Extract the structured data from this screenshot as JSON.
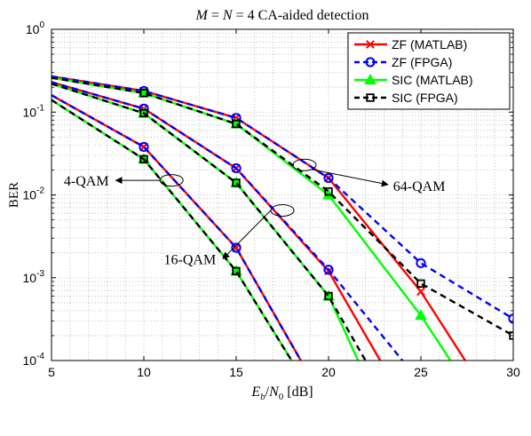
{
  "chart_data": {
    "type": "line",
    "title": "M = N = 4 CA-aided detection",
    "xlabel": "E_b/N_0 [dB]",
    "ylabel": "BER",
    "xlim": [
      5,
      30
    ],
    "ylim": [
      0.0001,
      1
    ],
    "yscale": "log",
    "grid": true,
    "legend_position": "top-right",
    "x_ticks": [
      "5",
      "10",
      "15",
      "20",
      "25",
      "30"
    ],
    "y_ticks": [
      {
        "base": "10",
        "exp": "0",
        "value": 1
      },
      {
        "base": "10",
        "exp": "-1",
        "value": 0.1
      },
      {
        "base": "10",
        "exp": "-2",
        "value": 0.01
      },
      {
        "base": "10",
        "exp": "-3",
        "value": 0.001
      },
      {
        "base": "10",
        "exp": "-4",
        "value": 0.0001
      }
    ],
    "series": [
      {
        "name": "ZF (MATLAB)",
        "color": "#ff0000",
        "dash": "solid",
        "marker": "x",
        "curves": [
          [
            [
              5,
              0.16
            ],
            [
              10,
              0.038
            ],
            [
              15,
              0.0023
            ],
            [
              18.5,
              0.0001
            ]
          ],
          [
            [
              5,
              0.23
            ],
            [
              10,
              0.11
            ],
            [
              15,
              0.021
            ],
            [
              20,
              0.0012
            ],
            [
              22.8,
              0.0001
            ]
          ],
          [
            [
              5,
              0.27
            ],
            [
              10,
              0.18
            ],
            [
              15,
              0.085
            ],
            [
              20,
              0.016
            ],
            [
              25,
              0.00068
            ],
            [
              27.4,
              0.0001
            ]
          ]
        ]
      },
      {
        "name": "ZF (FPGA)",
        "color": "#0000ff",
        "dash": "dashed",
        "marker": "o",
        "curves": [
          [
            [
              5,
              0.16
            ],
            [
              10,
              0.038
            ],
            [
              15,
              0.0023
            ],
            [
              18.5,
              0.0001
            ]
          ],
          [
            [
              5,
              0.23
            ],
            [
              10,
              0.11
            ],
            [
              15,
              0.021
            ],
            [
              20,
              0.00125
            ],
            [
              24.0,
              0.0001
            ]
          ],
          [
            [
              5,
              0.27
            ],
            [
              10,
              0.18
            ],
            [
              15,
              0.085
            ],
            [
              20,
              0.016
            ],
            [
              25,
              0.0015
            ],
            [
              30,
              0.00032
            ]
          ]
        ]
      },
      {
        "name": "SIC (MATLAB)",
        "color": "#00ff00",
        "dash": "solid",
        "marker": "triangle",
        "curves": [
          [
            [
              5,
              0.14
            ],
            [
              10,
              0.027
            ],
            [
              15,
              0.0012
            ],
            [
              18.0,
              0.0001
            ]
          ],
          [
            [
              5,
              0.22
            ],
            [
              10,
              0.097
            ],
            [
              15,
              0.014
            ],
            [
              20,
              0.0006
            ],
            [
              21.6,
              0.0001
            ]
          ],
          [
            [
              5,
              0.26
            ],
            [
              10,
              0.17
            ],
            [
              15,
              0.072
            ],
            [
              20,
              0.01
            ],
            [
              25,
              0.00035
            ],
            [
              26.6,
              0.0001
            ]
          ]
        ]
      },
      {
        "name": "SIC (FPGA)",
        "color": "#000000",
        "dash": "dashed",
        "marker": "square",
        "curves": [
          [
            [
              5,
              0.14
            ],
            [
              10,
              0.027
            ],
            [
              15,
              0.0012
            ],
            [
              18.0,
              0.0001
            ]
          ],
          [
            [
              5,
              0.22
            ],
            [
              10,
              0.097
            ],
            [
              15,
              0.014
            ],
            [
              20,
              0.0006
            ],
            [
              22.0,
              0.0001
            ]
          ],
          [
            [
              5,
              0.26
            ],
            [
              10,
              0.17
            ],
            [
              15,
              0.072
            ],
            [
              20,
              0.011
            ],
            [
              25,
              0.00085
            ],
            [
              30,
              0.0002
            ]
          ]
        ]
      }
    ],
    "annotations": [
      {
        "text": "4-QAM",
        "ellipse_at": [
          11.5,
          0.015
        ],
        "label_at": [
          8.2,
          0.015
        ]
      },
      {
        "text": "16-QAM",
        "ellipse_at": [
          17.5,
          0.0065
        ],
        "label_at": [
          14.0,
          0.0017
        ]
      },
      {
        "text": "64-QAM",
        "ellipse_at": [
          18.7,
          0.023
        ],
        "label_at": [
          23.5,
          0.013
        ]
      }
    ]
  }
}
